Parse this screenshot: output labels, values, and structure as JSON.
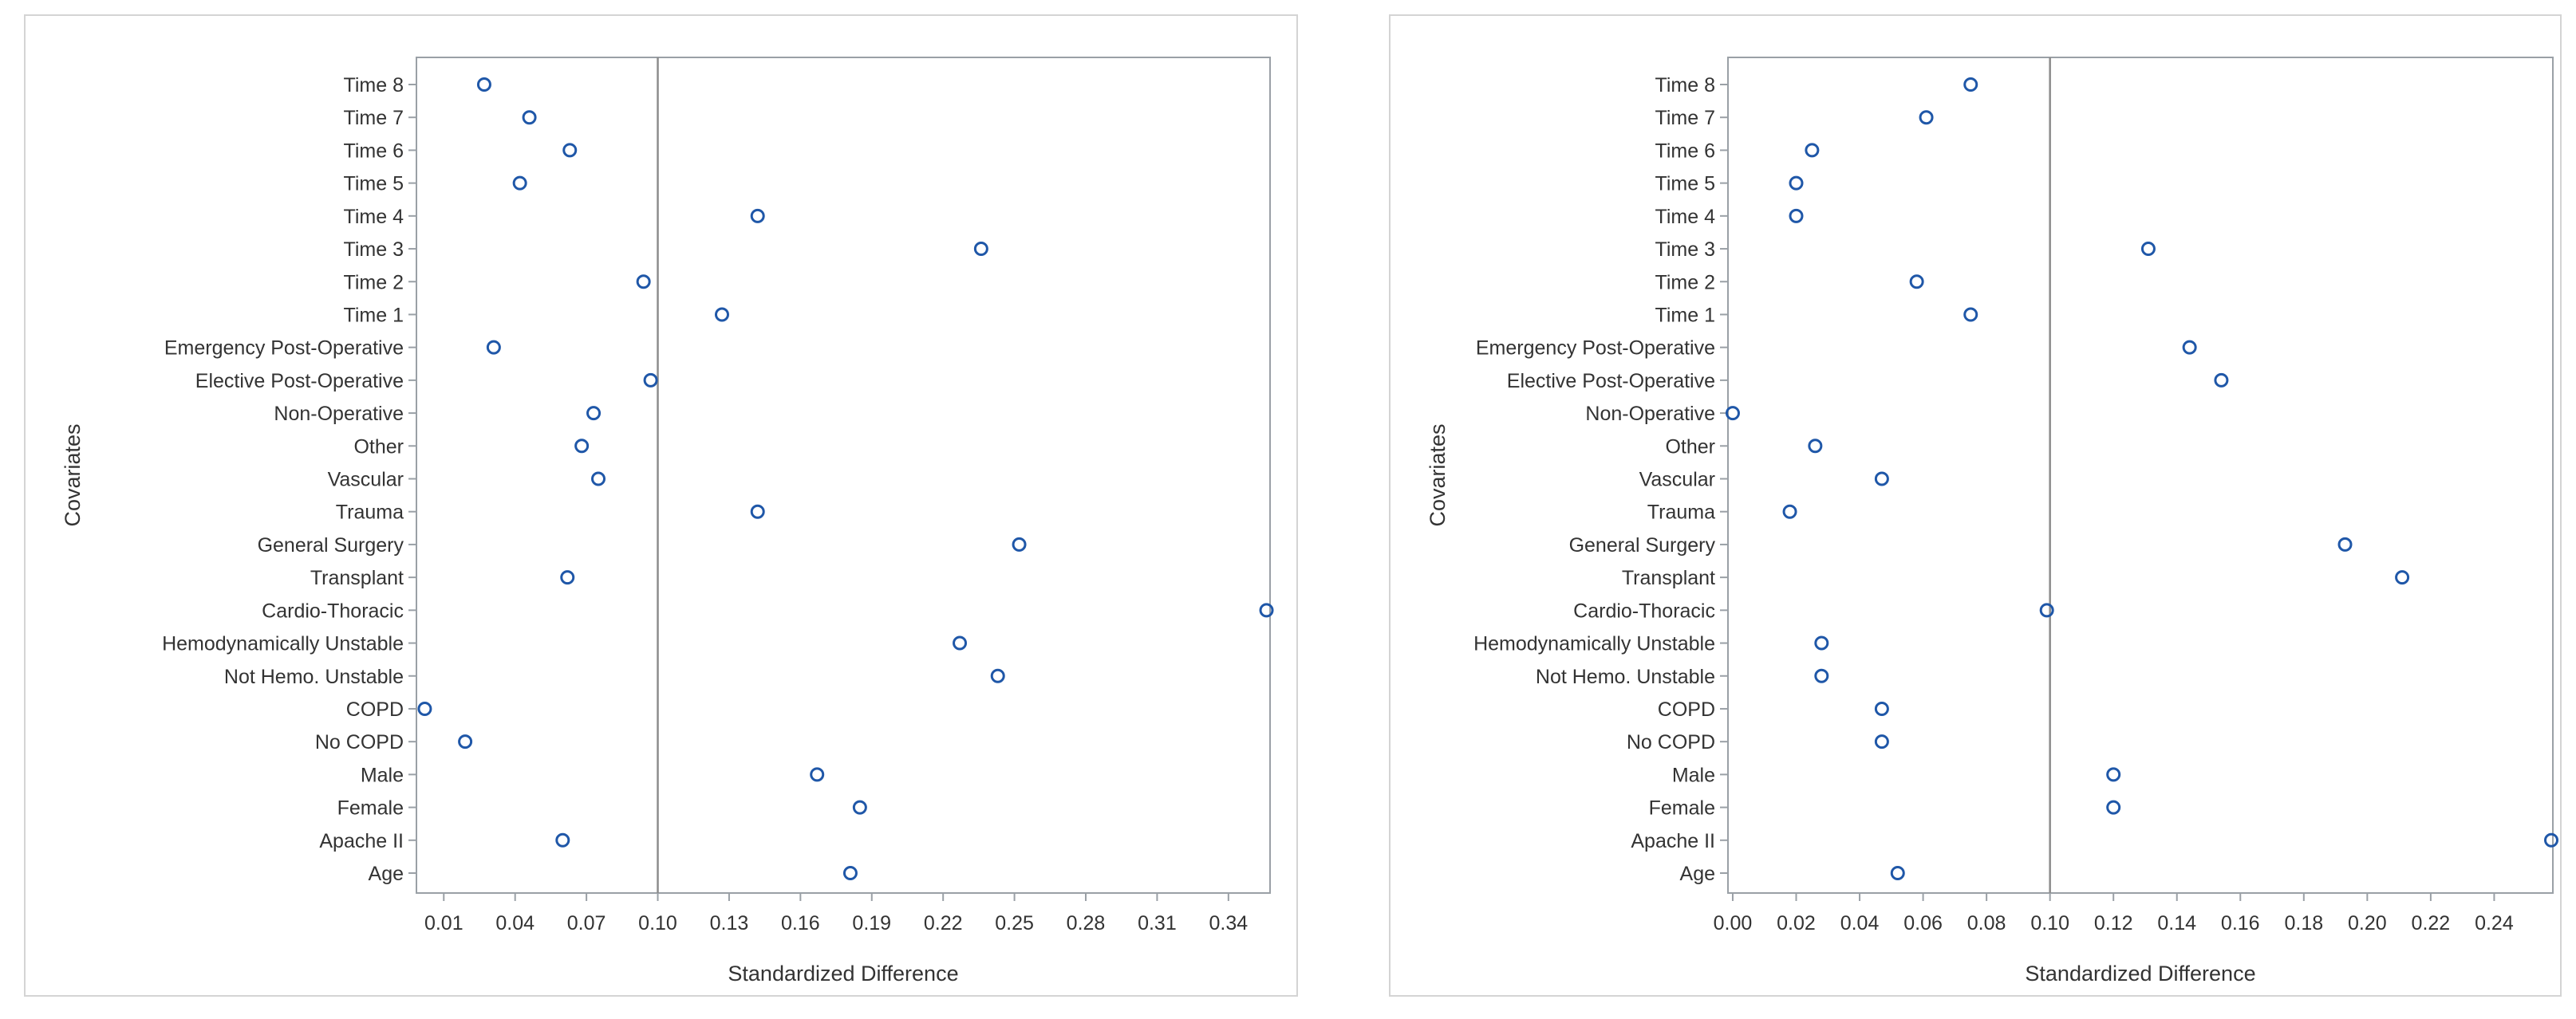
{
  "colors": {
    "marker": "#1f57a8",
    "frame": "#9aa0a6",
    "reference_line": "#8c8c8c",
    "text": "#333333",
    "panel_border": "#d4d4d4"
  },
  "chart_data": [
    {
      "type": "scatter",
      "title": "",
      "xlabel": "Standardized Difference",
      "ylabel": "Covariates",
      "xlim": [
        -0.0015,
        0.3575
      ],
      "x_ticks": [
        "0.01",
        "0.04",
        "0.07",
        "0.10",
        "0.13",
        "0.16",
        "0.19",
        "0.22",
        "0.25",
        "0.28",
        "0.31",
        "0.34"
      ],
      "reference_line": 0.1,
      "categories": [
        "Time 8",
        "Time 7",
        "Time 6",
        "Time 5",
        "Time 4",
        "Time 3",
        "Time 2",
        "Time 1",
        "Emergency Post-Operative",
        "Elective Post-Operative",
        "Non-Operative",
        "Other",
        "Vascular",
        "Trauma",
        "General Surgery",
        "Transplant",
        "Cardio-Thoracic",
        "Hemodynamically Unstable",
        "Not Hemo. Unstable",
        "COPD",
        "No COPD",
        "Male",
        "Female",
        "Apache II",
        "Age"
      ],
      "values": [
        0.027,
        0.046,
        0.063,
        0.042,
        0.142,
        0.236,
        0.094,
        0.127,
        0.031,
        0.097,
        0.073,
        0.068,
        0.075,
        0.142,
        0.252,
        0.062,
        0.356,
        0.227,
        0.243,
        0.002,
        0.019,
        0.167,
        0.185,
        0.06,
        0.181
      ]
    },
    {
      "type": "scatter",
      "title": "",
      "xlabel": "Standardized Difference",
      "ylabel": "Covariates",
      "xlim": [
        -0.0015,
        0.2585
      ],
      "x_ticks": [
        "0.00",
        "0.02",
        "0.04",
        "0.06",
        "0.08",
        "0.10",
        "0.12",
        "0.14",
        "0.16",
        "0.18",
        "0.20",
        "0.22",
        "0.24"
      ],
      "reference_line": 0.1,
      "categories": [
        "Time 8",
        "Time 7",
        "Time 6",
        "Time 5",
        "Time 4",
        "Time 3",
        "Time 2",
        "Time 1",
        "Emergency Post-Operative",
        "Elective Post-Operative",
        "Non-Operative",
        "Other",
        "Vascular",
        "Trauma",
        "General Surgery",
        "Transplant",
        "Cardio-Thoracic",
        "Hemodynamically Unstable",
        "Not Hemo. Unstable",
        "COPD",
        "No COPD",
        "Male",
        "Female",
        "Apache II",
        "Age"
      ],
      "values": [
        0.075,
        0.061,
        0.025,
        0.02,
        0.02,
        0.131,
        0.058,
        0.075,
        0.144,
        0.154,
        0.0,
        0.026,
        0.047,
        0.018,
        0.193,
        0.211,
        0.099,
        0.028,
        0.028,
        0.047,
        0.047,
        0.12,
        0.12,
        0.258,
        0.052
      ]
    }
  ]
}
